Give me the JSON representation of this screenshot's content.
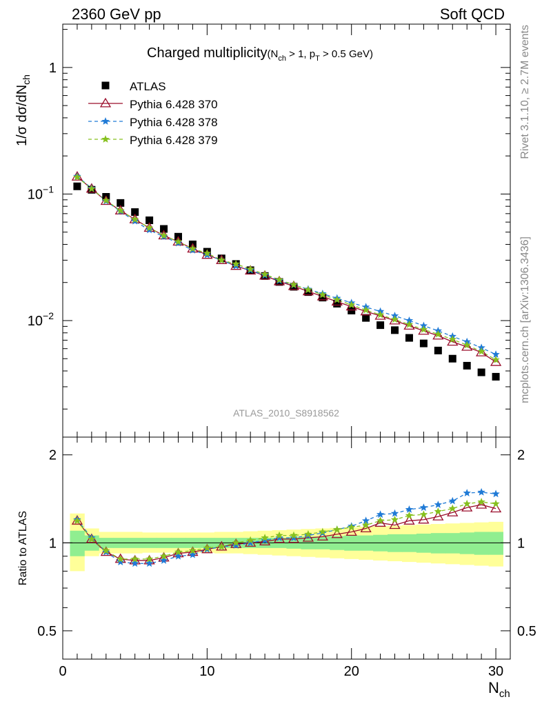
{
  "header": {
    "left": "2360 GeV pp",
    "right": "Soft QCD"
  },
  "side": {
    "rivet": "Rivet 3.1.10, ≥ 2.7M events",
    "mcplots": "mcplots.cern.ch [arXiv:1306.3436]"
  },
  "chart_data": {
    "type": "scatter",
    "title_main": "Charged multiplicity",
    "title_sub": "(N",
    "title_sub_ch": "ch",
    "title_sub_mid": " > 1, p",
    "title_sub_T": "T",
    "title_sub_end": " > 0.5 GeV)",
    "analysis": "ATLAS_2010_S8918562",
    "ylabel_prefix": "1/σ dσ/dN",
    "ylabel_sub": "ch",
    "xlabel_main": "N",
    "xlabel_sub": "ch",
    "ratio_ylabel": "Ratio to ATLAS",
    "xlim": [
      0,
      31
    ],
    "ylim": [
      0.0012,
      2.2
    ],
    "yscale": "log",
    "ratio_ylim": [
      0.4,
      2.3
    ],
    "x_ticks": [
      "0",
      "10",
      "20",
      "30"
    ],
    "y_ticks": {
      "top": "1",
      "mid": "10",
      "mid_exp": "−1",
      "low": "10",
      "low_exp": "−2"
    },
    "ratio_ticks": [
      "0.5",
      "1",
      "2"
    ],
    "x": [
      1,
      2,
      3,
      4,
      5,
      6,
      7,
      8,
      9,
      10,
      11,
      12,
      13,
      14,
      15,
      16,
      17,
      18,
      19,
      20,
      21,
      22,
      23,
      24,
      25,
      26,
      27,
      28,
      29,
      30
    ],
    "legend_position": "top-left",
    "series": [
      {
        "name": "ATLAS",
        "color": "#000000",
        "marker": "square",
        "values": [
          0.115,
          0.108,
          0.095,
          0.085,
          0.072,
          0.062,
          0.053,
          0.046,
          0.04,
          0.035,
          0.031,
          0.028,
          0.025,
          0.0225,
          0.0202,
          0.0185,
          0.0168,
          0.0152,
          0.0136,
          0.012,
          0.0105,
          0.0092,
          0.0084,
          0.0073,
          0.0066,
          0.0058,
          0.005,
          0.0044,
          0.0039,
          0.0036
        ]
      },
      {
        "name": "Pythia 6.428 370",
        "color": "#9a0d2b",
        "marker": "triangle",
        "dash": "",
        "values": [
          0.137,
          0.11,
          0.088,
          0.074,
          0.063,
          0.054,
          0.047,
          0.042,
          0.037,
          0.033,
          0.03,
          0.027,
          0.0248,
          0.0226,
          0.0204,
          0.0187,
          0.017,
          0.0155,
          0.0141,
          0.0129,
          0.0118,
          0.0109,
          0.01,
          0.0091,
          0.0083,
          0.0076,
          0.0068,
          0.0062,
          0.0056,
          0.0047
        ]
      },
      {
        "name": "Pythia 6.428 378",
        "color": "#1f7ad6",
        "marker": "star",
        "dash": "5,4",
        "values": [
          0.138,
          0.111,
          0.088,
          0.073,
          0.061,
          0.052,
          0.046,
          0.041,
          0.036,
          0.033,
          0.03,
          0.027,
          0.025,
          0.0228,
          0.0207,
          0.0191,
          0.0177,
          0.0163,
          0.015,
          0.0138,
          0.0128,
          0.0118,
          0.0109,
          0.01,
          0.0091,
          0.0083,
          0.0075,
          0.0068,
          0.0061,
          0.0054
        ]
      },
      {
        "name": "Pythia 6.428 379",
        "color": "#86c01e",
        "marker": "star",
        "dash": "5,4",
        "values": [
          0.136,
          0.11,
          0.089,
          0.074,
          0.063,
          0.054,
          0.047,
          0.042,
          0.037,
          0.034,
          0.03,
          0.028,
          0.0255,
          0.0232,
          0.021,
          0.0192,
          0.0175,
          0.016,
          0.0146,
          0.0133,
          0.0121,
          0.0111,
          0.0102,
          0.0093,
          0.0085,
          0.0078,
          0.0071,
          0.0064,
          0.0057,
          0.0049
        ]
      }
    ],
    "ratio_series": [
      {
        "name": "Pythia 6.428 370",
        "values": [
          1.19,
          1.03,
          0.93,
          0.88,
          0.87,
          0.87,
          0.89,
          0.92,
          0.93,
          0.95,
          0.97,
          0.99,
          1.0,
          1.01,
          1.03,
          1.03,
          1.04,
          1.05,
          1.07,
          1.09,
          1.12,
          1.17,
          1.15,
          1.19,
          1.2,
          1.23,
          1.27,
          1.32,
          1.35,
          1.31
        ]
      },
      {
        "name": "Pythia 6.428 378",
        "values": [
          1.2,
          1.04,
          0.93,
          0.86,
          0.85,
          0.85,
          0.87,
          0.9,
          0.91,
          0.95,
          0.97,
          0.98,
          1.0,
          1.02,
          1.04,
          1.04,
          1.06,
          1.08,
          1.11,
          1.14,
          1.19,
          1.25,
          1.26,
          1.3,
          1.32,
          1.35,
          1.39,
          1.48,
          1.49,
          1.47
        ]
      },
      {
        "name": "Pythia 6.428 379",
        "values": [
          1.19,
          1.03,
          0.94,
          0.88,
          0.88,
          0.88,
          0.9,
          0.93,
          0.94,
          0.96,
          0.97,
          1.0,
          1.02,
          1.04,
          1.06,
          1.06,
          1.07,
          1.09,
          1.11,
          1.13,
          1.15,
          1.19,
          1.2,
          1.24,
          1.25,
          1.28,
          1.31,
          1.36,
          1.38,
          1.36
        ]
      }
    ],
    "bands": {
      "inner": {
        "color": "#90ee90",
        "lo": [
          0.9,
          0.94,
          0.96,
          0.96,
          0.96,
          0.96,
          0.96,
          0.96,
          0.96,
          0.96,
          0.96,
          0.96,
          0.96,
          0.96,
          0.96,
          0.955,
          0.95,
          0.95,
          0.945,
          0.94,
          0.94,
          0.935,
          0.93,
          0.93,
          0.925,
          0.92,
          0.92,
          0.915,
          0.91,
          0.91
        ],
        "hi": [
          1.1,
          1.06,
          1.04,
          1.04,
          1.04,
          1.04,
          1.04,
          1.04,
          1.04,
          1.04,
          1.04,
          1.04,
          1.04,
          1.04,
          1.04,
          1.045,
          1.05,
          1.05,
          1.055,
          1.06,
          1.06,
          1.065,
          1.07,
          1.07,
          1.075,
          1.08,
          1.08,
          1.085,
          1.09,
          1.09
        ]
      },
      "outer": {
        "color": "#ffff99",
        "lo": [
          0.8,
          0.9,
          0.92,
          0.92,
          0.92,
          0.925,
          0.925,
          0.925,
          0.925,
          0.925,
          0.92,
          0.92,
          0.915,
          0.91,
          0.905,
          0.9,
          0.895,
          0.89,
          0.885,
          0.88,
          0.875,
          0.87,
          0.865,
          0.86,
          0.855,
          0.85,
          0.845,
          0.84,
          0.835,
          0.83
        ],
        "hi": [
          1.26,
          1.12,
          1.09,
          1.09,
          1.09,
          1.085,
          1.085,
          1.085,
          1.085,
          1.085,
          1.09,
          1.09,
          1.095,
          1.1,
          1.105,
          1.11,
          1.115,
          1.12,
          1.125,
          1.13,
          1.135,
          1.14,
          1.145,
          1.15,
          1.155,
          1.16,
          1.165,
          1.17,
          1.175,
          1.18
        ]
      }
    }
  }
}
